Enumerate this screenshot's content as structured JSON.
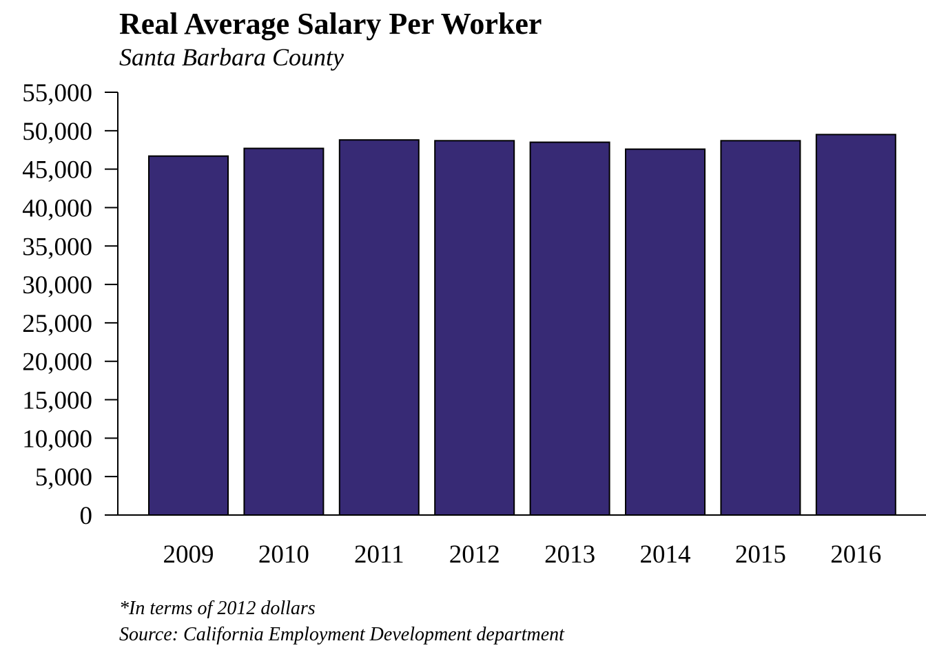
{
  "chart_data": {
    "type": "bar",
    "title": "Real Average Salary Per Worker",
    "subtitle": "Santa Barbara County",
    "categories": [
      "2009",
      "2010",
      "2011",
      "2012",
      "2013",
      "2014",
      "2015",
      "2016"
    ],
    "values": [
      46700,
      47700,
      48800,
      48700,
      48500,
      47600,
      48700,
      49500
    ],
    "xlabel": "",
    "ylabel": "",
    "ylim": [
      0,
      55000
    ],
    "yticks": [
      0,
      5000,
      10000,
      15000,
      20000,
      25000,
      30000,
      35000,
      40000,
      45000,
      50000,
      55000
    ],
    "ytick_labels": [
      "0",
      "5,000",
      "10,000",
      "15,000",
      "20,000",
      "25,000",
      "30,000",
      "35,000",
      "40,000",
      "45,000",
      "50,000",
      "55,000"
    ],
    "grid": false,
    "legend": "none",
    "bar_color": "#372A75",
    "bar_edge_color": "#000000"
  },
  "footnotes": {
    "note": "*In terms of 2012 dollars",
    "source": "Source: California Employment Development department"
  }
}
